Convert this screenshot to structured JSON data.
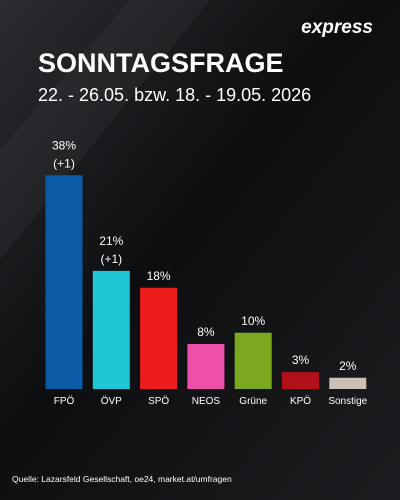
{
  "logo": "express",
  "chart_data": {
    "type": "bar",
    "title": "SONNTAGSFRAGE",
    "subtitle": "22. - 26.05. bzw. 18. - 19.05. 2026",
    "categories": [
      "FPÖ",
      "ÖVP",
      "SPÖ",
      "NEOS",
      "Grüne",
      "KPÖ",
      "Sonstige"
    ],
    "values": [
      38,
      21,
      18,
      8,
      10,
      3,
      2
    ],
    "value_labels": [
      "38%",
      "21%",
      "18%",
      "8%",
      "10%",
      "3%",
      "2%"
    ],
    "change_labels": [
      "(+1)",
      "(+1)",
      null,
      null,
      null,
      null,
      null
    ],
    "colors": [
      "#0b5aa6",
      "#1fc6d6",
      "#ee1d1d",
      "#ee4fa8",
      "#7ba81f",
      "#b2101b",
      "#cbbfb8"
    ],
    "ylim": [
      0,
      40
    ]
  },
  "source": "Quelle:  Lazarsfeld Gesellschaft, oe24, market.at/umfragen"
}
